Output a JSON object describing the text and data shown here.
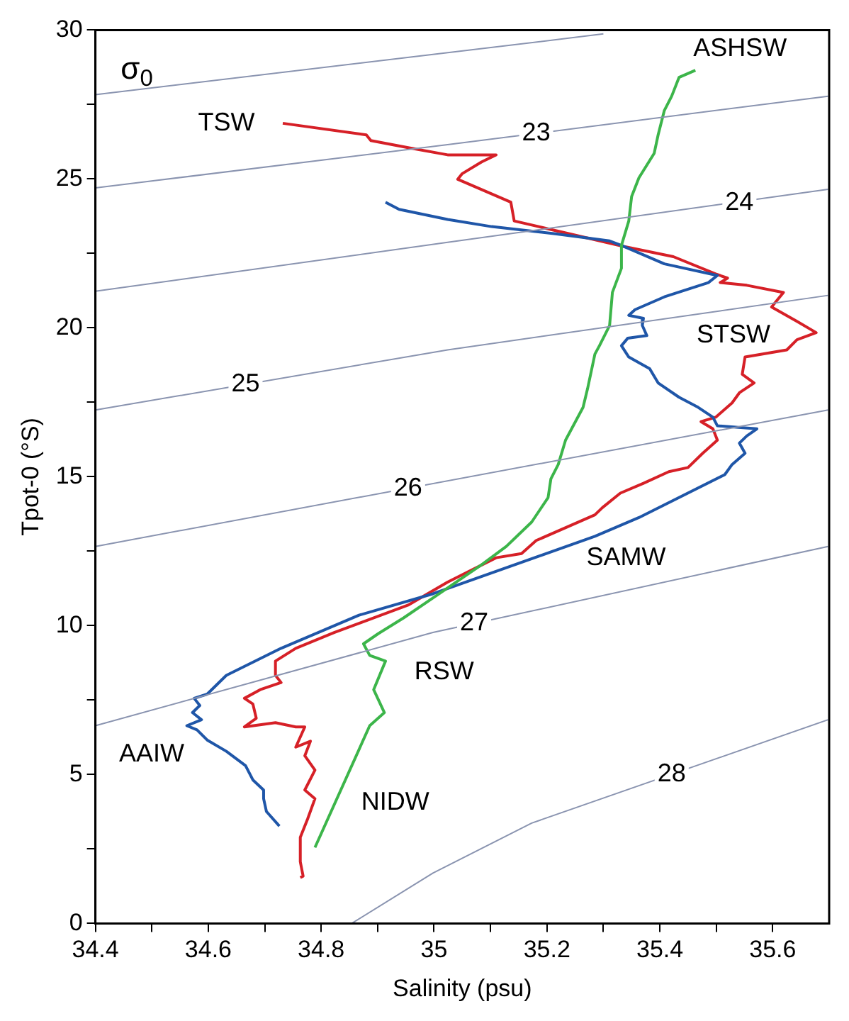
{
  "chart_data": {
    "type": "line",
    "xlabel": "Salinity (psu)",
    "ylabel": "Tpot-0 (°S)",
    "xlim": [
      34.4,
      35.7
    ],
    "xticks": [
      34.4,
      {
        "value": 34.5,
        "label": null
      },
      34.6,
      {
        "value": 34.7,
        "label": null
      },
      34.8,
      {
        "value": 34.9,
        "label": null
      },
      35,
      {
        "value": 35.1,
        "label": null
      },
      35.2,
      {
        "value": 35.3,
        "label": null
      },
      35.4,
      {
        "value": 35.5,
        "label": null
      },
      35.6
    ],
    "ylim": [
      0,
      30
    ],
    "yticks": [
      0,
      {
        "value": 2.5,
        "label": null
      },
      5,
      {
        "value": 7.5,
        "label": null
      },
      10,
      {
        "value": 12.5,
        "label": null
      },
      15,
      {
        "value": 17.5,
        "label": null
      },
      20,
      {
        "value": 22.5,
        "label": null
      },
      25,
      {
        "value": 27.5,
        "label": null
      },
      30
    ],
    "grid": false,
    "legend": false,
    "marker": "none",
    "line_style": "solid",
    "series": [
      {
        "color": "#8a94b0",
        "x": [
          34.4,
          34.998,
          35.3
        ],
        "values": [
          27.83,
          29.18,
          29.87
        ]
      },
      {
        "color": "#8a94b0",
        "x": [
          34.4,
          35.024,
          35.698
        ],
        "values": [
          24.7,
          26.15,
          27.78
        ]
      },
      {
        "color": "#8a94b0",
        "x": [
          34.4,
          35.024,
          35.698
        ],
        "values": [
          21.23,
          22.87,
          24.65
        ]
      },
      {
        "color": "#8a94b0",
        "x": [
          34.4,
          35.024,
          35.698
        ],
        "values": [
          17.24,
          19.26,
          21.09
        ]
      },
      {
        "color": "#8a94b0",
        "x": [
          34.4,
          35.698
        ],
        "values": [
          12.66,
          17.24
        ]
      },
      {
        "color": "#8a94b0",
        "x": [
          34.4,
          34.998,
          35.698
        ],
        "values": [
          6.64,
          9.77,
          12.66
        ]
      },
      {
        "color": "#8a94b0",
        "x": [
          34.854,
          34.998,
          35.173,
          35.698
        ],
        "values": [
          0.0,
          1.69,
          3.37,
          6.84
        ]
      },
      {
        "color": "#3cb54a",
        "x": [
          35.463,
          35.434,
          35.421,
          35.408,
          35.397,
          35.39,
          35.363,
          35.35,
          35.345,
          35.332,
          35.332,
          35.316,
          35.311,
          35.293,
          35.285,
          35.272,
          35.264,
          35.233,
          35.22,
          35.207,
          35.202,
          35.173,
          35.128,
          35.084,
          34.998,
          34.946,
          34.901,
          34.875,
          34.886,
          34.914,
          34.893,
          34.912,
          34.886,
          34.789
        ],
        "values": [
          28.65,
          28.41,
          27.78,
          27.3,
          26.48,
          25.86,
          25.04,
          24.41,
          23.59,
          22.77,
          22.0,
          21.19,
          20.08,
          19.4,
          19.12,
          17.96,
          17.33,
          16.23,
          15.41,
          14.93,
          14.3,
          13.48,
          12.66,
          12.04,
          10.93,
          10.26,
          9.73,
          9.39,
          9.0,
          8.81,
          7.85,
          7.08,
          6.64,
          2.55
        ]
      },
      {
        "color": "#1f56a8",
        "x": [
          34.914,
          34.938,
          35.024,
          35.102,
          35.215,
          35.311,
          35.332,
          35.408,
          35.502,
          35.486,
          35.408,
          35.356,
          35.345,
          35.371,
          35.369,
          35.377,
          35.343,
          35.332,
          35.345,
          35.382,
          35.397,
          35.434,
          35.468,
          35.494,
          35.502,
          35.572,
          35.554,
          35.541,
          35.551,
          35.528,
          35.515,
          35.363,
          35.285,
          34.998,
          34.867,
          34.729,
          34.632,
          34.598,
          34.575,
          34.585,
          34.572,
          34.588,
          34.562,
          34.58,
          34.598,
          34.632,
          34.666,
          34.679,
          34.698,
          34.698,
          34.703,
          34.726
        ],
        "values": [
          24.22,
          23.98,
          23.64,
          23.4,
          23.16,
          22.92,
          22.77,
          22.15,
          21.76,
          21.52,
          21.04,
          20.61,
          20.42,
          20.32,
          20.08,
          19.74,
          19.65,
          19.4,
          19.02,
          18.63,
          18.15,
          17.67,
          17.33,
          17.0,
          16.71,
          16.61,
          16.37,
          16.13,
          15.79,
          15.41,
          15.07,
          13.63,
          13.0,
          11.07,
          10.35,
          9.24,
          8.33,
          7.7,
          7.56,
          7.32,
          7.08,
          6.84,
          6.64,
          6.5,
          6.16,
          5.78,
          5.3,
          4.82,
          4.48,
          4.19,
          3.76,
          3.27
        ]
      },
      {
        "color": "#d62027",
        "x": [
          34.732,
          34.88,
          34.888,
          34.954,
          35.024,
          35.11,
          35.084,
          35.05,
          35.042,
          35.136,
          35.142,
          35.337,
          35.424,
          35.499,
          35.52,
          35.507,
          35.554,
          35.619,
          35.598,
          35.643,
          35.677,
          35.643,
          35.625,
          35.551,
          35.546,
          35.567,
          35.541,
          35.528,
          35.499,
          35.473,
          35.494,
          35.502,
          35.476,
          35.45,
          35.416,
          35.371,
          35.33,
          35.298,
          35.285,
          35.181,
          35.155,
          35.11,
          35.024,
          34.954,
          34.823,
          34.755,
          34.719,
          34.719,
          34.729,
          34.692,
          34.664,
          34.679,
          34.685,
          34.664,
          34.719,
          34.755,
          34.771,
          34.755,
          34.781,
          34.771,
          34.789,
          34.771,
          34.789,
          34.776,
          34.763,
          34.763,
          34.768,
          34.763
        ],
        "values": [
          26.87,
          26.48,
          26.29,
          26.05,
          25.81,
          25.81,
          25.57,
          25.18,
          24.99,
          24.22,
          23.59,
          22.73,
          22.39,
          21.81,
          21.67,
          21.52,
          21.43,
          21.19,
          20.7,
          20.22,
          19.84,
          19.6,
          19.26,
          19.02,
          18.44,
          18.15,
          17.82,
          17.48,
          17.0,
          16.85,
          16.61,
          16.23,
          15.79,
          15.31,
          15.17,
          14.78,
          14.45,
          13.96,
          13.72,
          12.86,
          12.42,
          12.28,
          11.46,
          10.69,
          9.77,
          9.24,
          8.81,
          8.33,
          8.09,
          7.85,
          7.56,
          7.37,
          6.89,
          6.6,
          6.74,
          6.6,
          6.6,
          5.92,
          6.12,
          5.63,
          5.15,
          4.48,
          4.19,
          3.51,
          2.89,
          2.07,
          1.59,
          1.54
        ]
      }
    ],
    "annotations": [
      "σ$_{0}$",
      {
        "text": "23",
        "x": 35.181,
        "y": 26.53
      },
      {
        "text": "24",
        "x": 35.541,
        "y": 24.2
      },
      {
        "text": "25",
        "x": 34.666,
        "y": 18.1
      },
      {
        "text": "26",
        "x": 34.954,
        "y": 14.61
      },
      {
        "text": "27",
        "x": 35.071,
        "y": 10.07
      },
      {
        "text": "28",
        "x": 35.421,
        "y": 5.01
      },
      {
        "text": "TSW",
        "x": 34.632,
        "y": 26.87
      },
      "ASHSW",
      "STSW",
      "SAMW",
      "RSW",
      "AAIW",
      "NIDW"
    ]
  }
}
